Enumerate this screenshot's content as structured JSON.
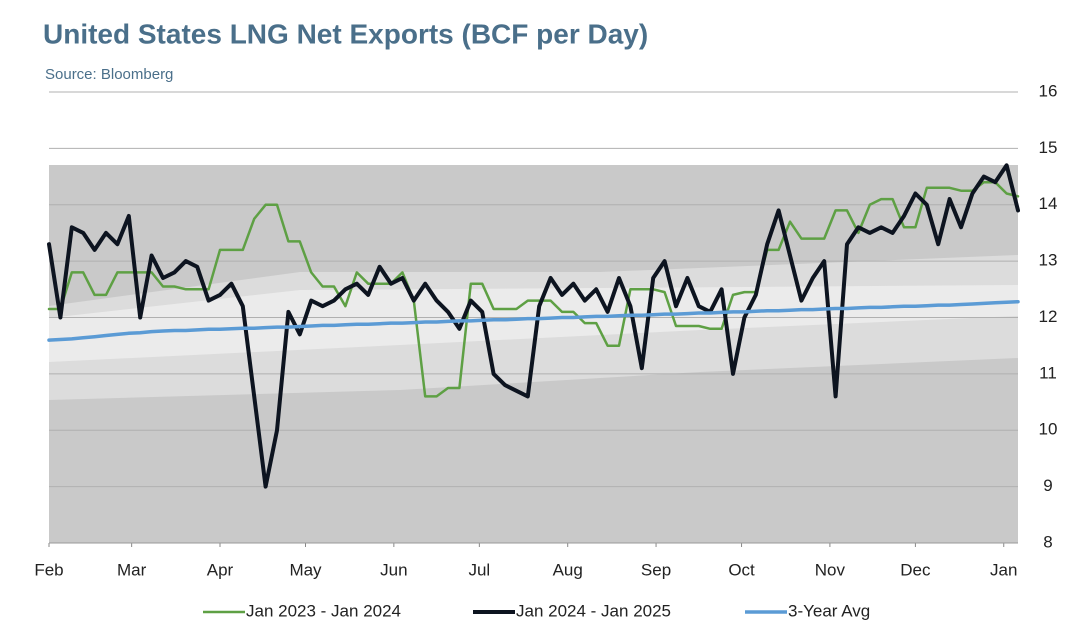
{
  "chart_data": {
    "type": "line",
    "title": "United States LNG Net Exports (BCF per Day)",
    "subtitle": "Source: Bloomberg",
    "x": [
      0,
      4,
      8,
      12,
      16,
      20,
      24,
      28,
      32,
      36,
      40,
      44,
      48,
      52,
      56,
      60,
      64,
      68,
      72,
      76,
      80,
      84,
      88,
      92,
      96,
      100,
      104,
      108,
      112,
      116,
      120,
      124,
      128,
      132,
      136,
      140,
      144,
      148,
      152,
      156,
      160,
      164,
      168,
      172,
      176,
      180,
      184,
      188,
      192,
      196,
      200,
      204,
      208,
      212,
      216,
      220,
      224,
      228,
      232,
      236,
      240,
      244,
      248,
      252,
      256,
      260,
      264,
      268,
      272,
      276,
      280,
      284,
      288,
      292,
      296,
      300,
      304,
      308,
      312,
      316,
      320,
      324,
      328,
      332,
      336,
      340
    ],
    "xlim": [
      0,
      340
    ],
    "xticks": [
      {
        "value": 0,
        "label": "Feb"
      },
      {
        "value": 29,
        "label": "Mar"
      },
      {
        "value": 60,
        "label": "Apr"
      },
      {
        "value": 90,
        "label": "May"
      },
      {
        "value": 121,
        "label": "Jun"
      },
      {
        "value": 151,
        "label": "Jul"
      },
      {
        "value": 182,
        "label": "Aug"
      },
      {
        "value": 213,
        "label": "Sep"
      },
      {
        "value": 243,
        "label": "Oct"
      },
      {
        "value": 274,
        "label": "Nov"
      },
      {
        "value": 304,
        "label": "Dec"
      },
      {
        "value": 335,
        "label": "Jan"
      }
    ],
    "ylim": [
      8,
      16
    ],
    "yticks": [
      8,
      9,
      10,
      11,
      12,
      13,
      14,
      15,
      16
    ],
    "grid": true,
    "legend": "bottom",
    "series": [
      {
        "name": "Jan 2023 - Jan 2024",
        "color": "#5ea044",
        "width": 2.5,
        "values": [
          12.15,
          12.15,
          12.8,
          12.8,
          12.4,
          12.4,
          12.8,
          12.8,
          12.8,
          12.8,
          12.55,
          12.55,
          12.5,
          12.5,
          12.5,
          13.2,
          13.2,
          13.2,
          13.75,
          14.0,
          14.0,
          13.35,
          13.35,
          12.8,
          12.55,
          12.55,
          12.2,
          12.8,
          12.6,
          12.6,
          12.6,
          12.8,
          12.3,
          10.6,
          10.6,
          10.75,
          10.75,
          12.6,
          12.6,
          12.15,
          12.15,
          12.15,
          12.3,
          12.3,
          12.3,
          12.1,
          12.1,
          11.9,
          11.9,
          11.5,
          11.5,
          12.5,
          12.5,
          12.5,
          12.45,
          11.85,
          11.85,
          11.85,
          11.8,
          11.8,
          12.4,
          12.45,
          12.45,
          13.2,
          13.2,
          13.7,
          13.4,
          13.4,
          13.4,
          13.9,
          13.9,
          13.5,
          14.0,
          14.1,
          14.1,
          13.6,
          13.6,
          14.3,
          14.3,
          14.3,
          14.25,
          14.25,
          14.4,
          14.4,
          14.2,
          14.15
        ]
      },
      {
        "name": "Jan 2024 - Jan 2025",
        "color": "#0d1420",
        "width": 4,
        "values": [
          13.3,
          12.0,
          13.6,
          13.5,
          13.2,
          13.5,
          13.3,
          13.8,
          12.0,
          13.1,
          12.7,
          12.8,
          13.0,
          12.9,
          12.3,
          12.4,
          12.6,
          12.2,
          10.6,
          9.0,
          10.0,
          12.1,
          11.7,
          12.3,
          12.2,
          12.3,
          12.5,
          12.6,
          12.4,
          12.9,
          12.6,
          12.7,
          12.3,
          12.6,
          12.3,
          12.1,
          11.8,
          12.3,
          12.1,
          11.0,
          10.8,
          10.7,
          10.6,
          12.2,
          12.7,
          12.4,
          12.6,
          12.3,
          12.5,
          12.1,
          12.7,
          12.2,
          11.1,
          12.7,
          13.0,
          12.2,
          12.7,
          12.2,
          12.1,
          12.5,
          11.0,
          12.0,
          12.4,
          13.3,
          13.9,
          13.1,
          12.3,
          12.7,
          13.0,
          10.6,
          13.3,
          13.6,
          13.5,
          13.6,
          13.5,
          13.8,
          14.2,
          14.0,
          13.3,
          14.1,
          13.6,
          14.2,
          14.5,
          14.4,
          14.7,
          13.9
        ]
      },
      {
        "name": "3-Year Avg",
        "color": "#5b9bd5",
        "width": 3.5,
        "values": [
          11.6,
          11.61,
          11.62,
          11.64,
          11.66,
          11.68,
          11.7,
          11.72,
          11.73,
          11.75,
          11.76,
          11.77,
          11.77,
          11.78,
          11.79,
          11.79,
          11.8,
          11.81,
          11.81,
          11.82,
          11.83,
          11.83,
          11.84,
          11.85,
          11.86,
          11.86,
          11.87,
          11.88,
          11.88,
          11.89,
          11.9,
          11.9,
          11.91,
          11.92,
          11.92,
          11.93,
          11.94,
          11.94,
          11.95,
          11.96,
          11.96,
          11.97,
          11.98,
          11.98,
          11.99,
          12.0,
          12.0,
          12.01,
          12.02,
          12.02,
          12.03,
          12.04,
          12.04,
          12.05,
          12.06,
          12.06,
          12.07,
          12.08,
          12.08,
          12.09,
          12.1,
          12.1,
          12.11,
          12.12,
          12.12,
          12.13,
          12.14,
          12.14,
          12.15,
          12.16,
          12.16,
          12.17,
          12.18,
          12.18,
          12.19,
          12.2,
          12.2,
          12.21,
          12.22,
          12.22,
          12.23,
          12.24,
          12.25,
          12.26,
          12.27,
          12.28
        ]
      }
    ]
  }
}
